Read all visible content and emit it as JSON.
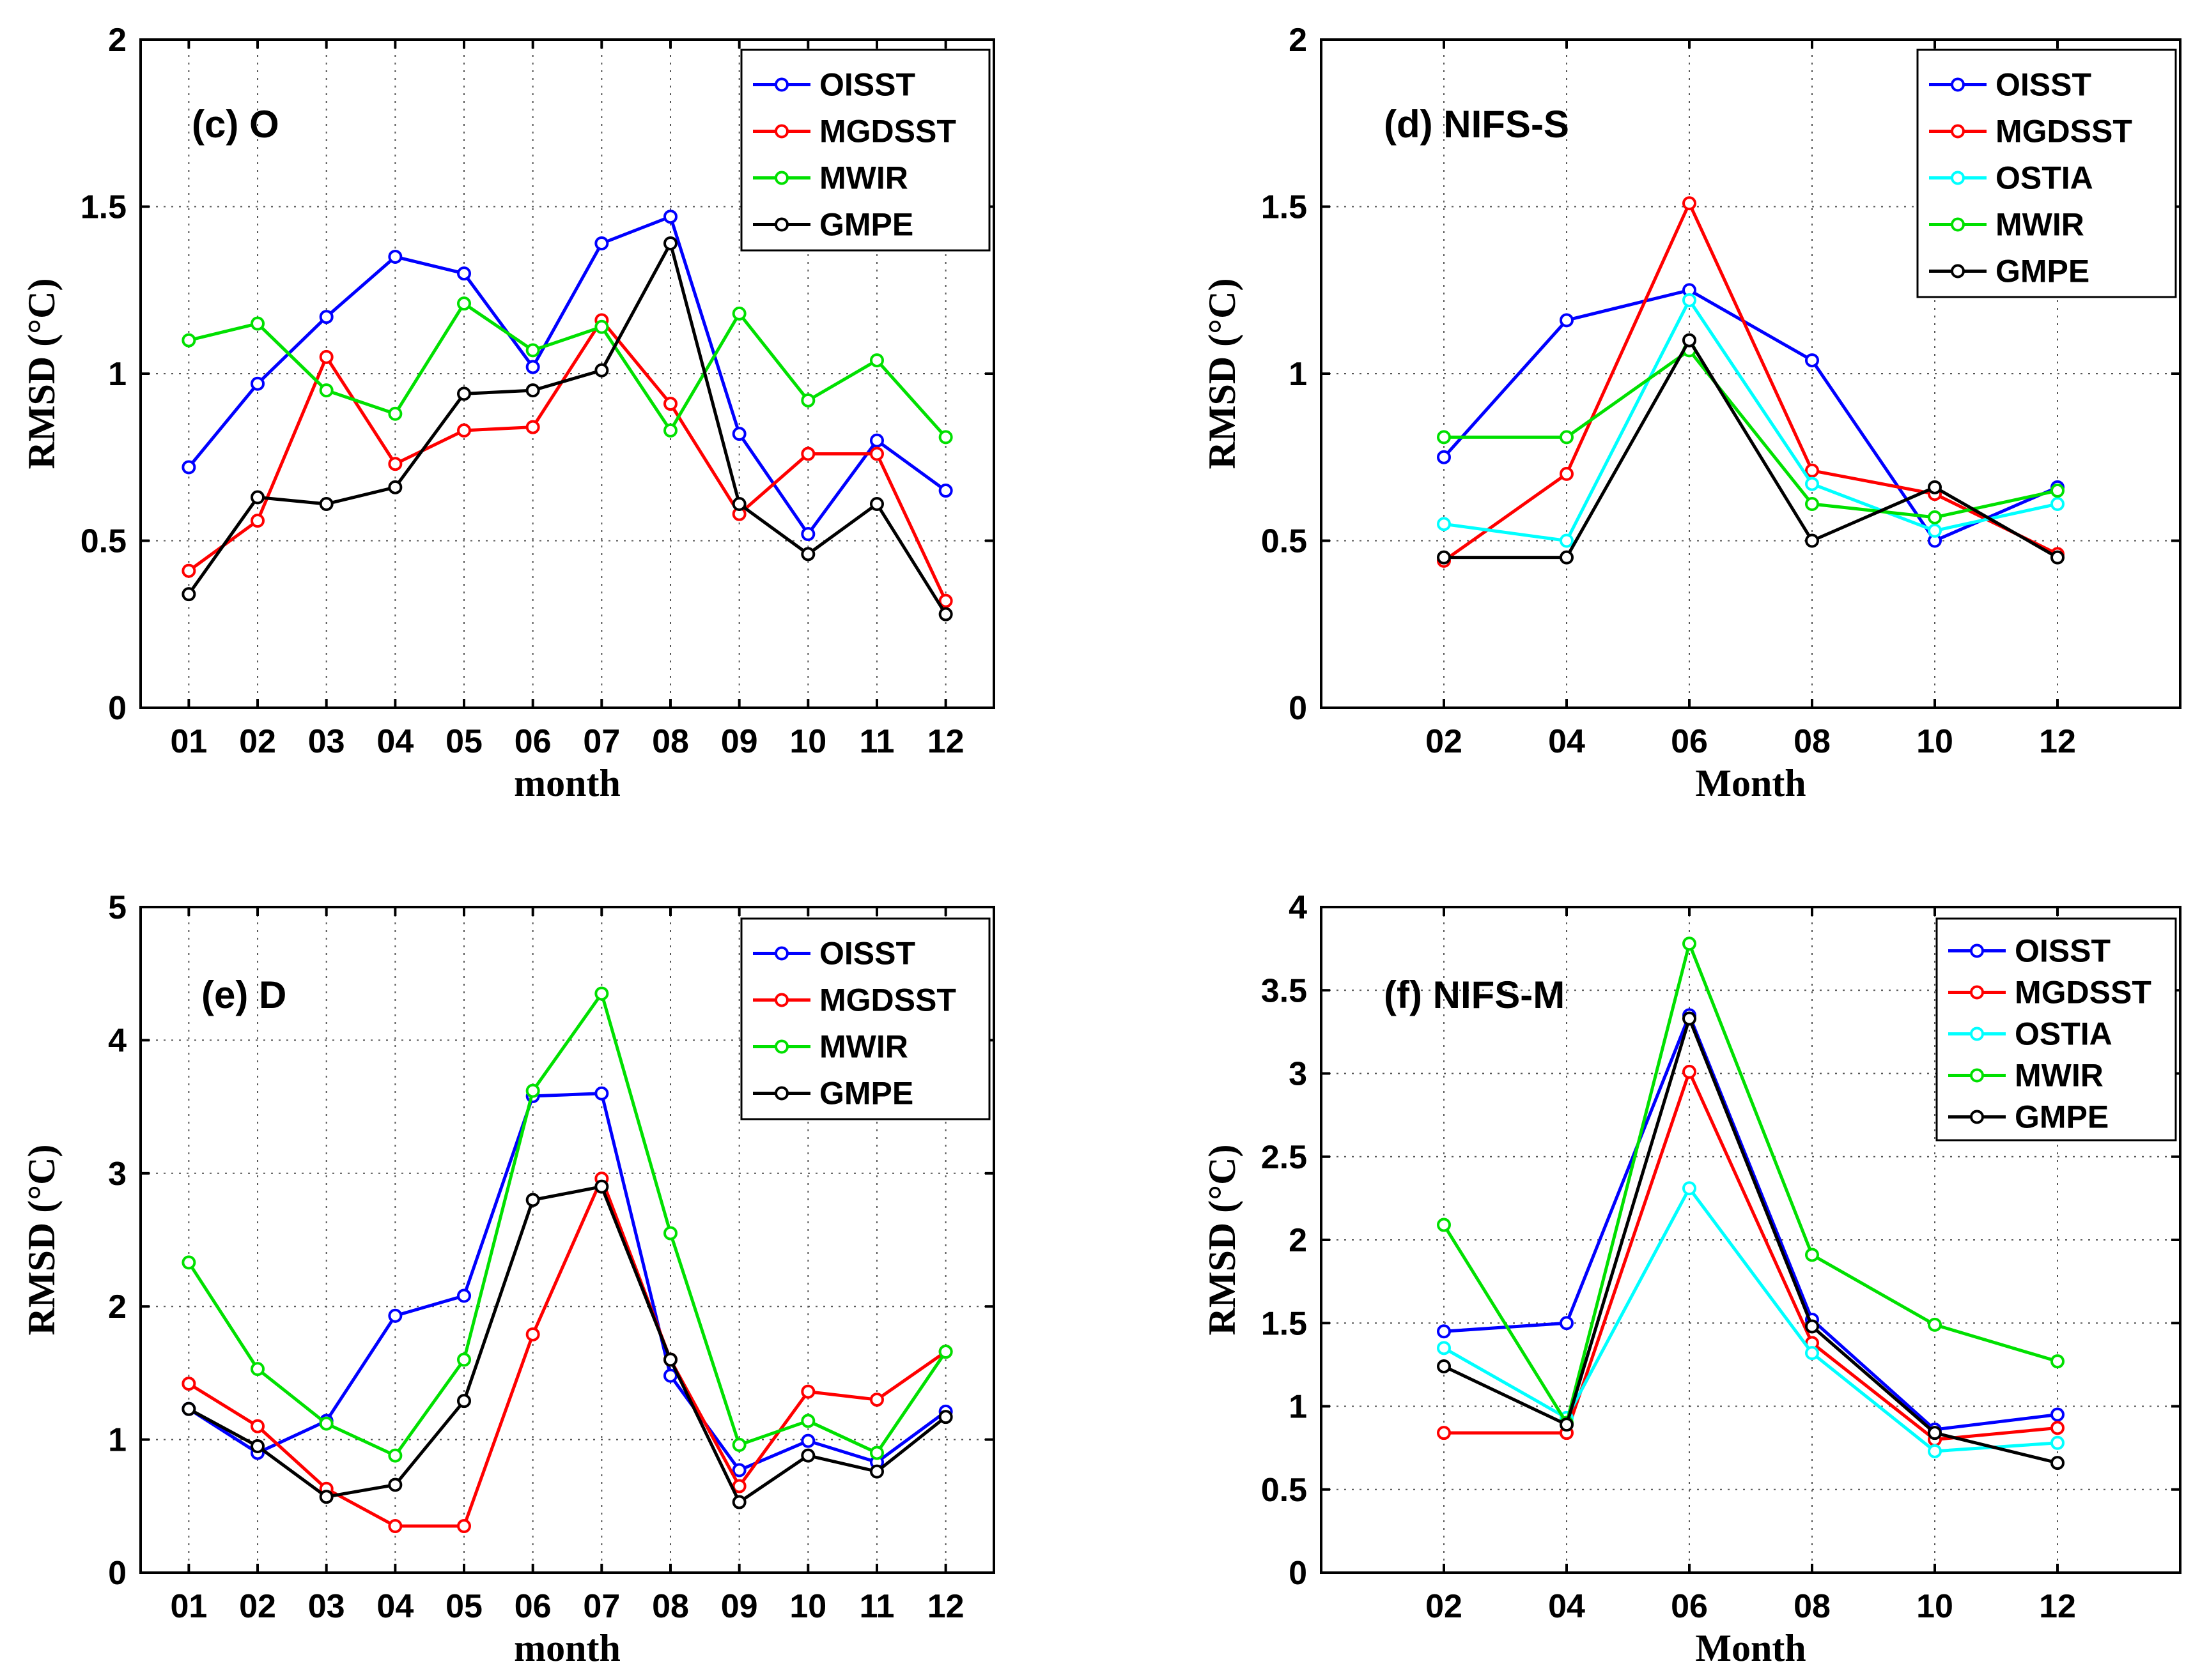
{
  "chart_data": [
    {
      "panel_label": "(c) O",
      "type": "line",
      "categories": [
        "01",
        "02",
        "03",
        "04",
        "05",
        "06",
        "07",
        "08",
        "09",
        "10",
        "11",
        "12"
      ],
      "xlabel": "month",
      "ylabel": "RMSD (°C)",
      "ylim": [
        0,
        2
      ],
      "yticks": [
        0,
        0.5,
        1,
        1.5,
        2
      ],
      "ytick_labels": [
        "0",
        "0.5",
        "1",
        "1.5",
        "2"
      ],
      "grid": true,
      "legend_position": "top-right",
      "series": [
        {
          "name": "OISST",
          "color": "#0000ff",
          "values": [
            0.72,
            0.97,
            1.17,
            1.35,
            1.3,
            1.02,
            1.39,
            1.47,
            0.82,
            0.52,
            0.8,
            0.65
          ]
        },
        {
          "name": "MGDSST",
          "color": "#ff0000",
          "values": [
            0.41,
            0.56,
            1.05,
            0.73,
            0.83,
            0.84,
            1.16,
            0.91,
            0.58,
            0.76,
            0.76,
            0.32
          ]
        },
        {
          "name": "MWIR",
          "color": "#00e000",
          "values": [
            1.1,
            1.15,
            0.95,
            0.88,
            1.21,
            1.07,
            1.14,
            0.83,
            1.18,
            0.92,
            1.04,
            0.81
          ]
        },
        {
          "name": "GMPE",
          "color": "#000000",
          "values": [
            0.34,
            0.63,
            0.61,
            0.66,
            0.94,
            0.95,
            1.01,
            1.39,
            0.61,
            0.46,
            0.61,
            0.28
          ]
        }
      ]
    },
    {
      "panel_label": "(d) NIFS-S",
      "type": "line",
      "categories": [
        "02",
        "04",
        "06",
        "08",
        "10",
        "12"
      ],
      "xlabel": "Month",
      "ylabel": "RMSD (°C)",
      "ylim": [
        0,
        2
      ],
      "yticks": [
        0,
        0.5,
        1,
        1.5,
        2
      ],
      "ytick_labels": [
        "0",
        "0.5",
        "1",
        "1.5",
        "2"
      ],
      "grid": true,
      "legend_position": "top-right",
      "series": [
        {
          "name": "OISST",
          "color": "#0000ff",
          "values": [
            0.75,
            1.16,
            1.25,
            1.04,
            0.5,
            0.66
          ]
        },
        {
          "name": "MGDSST",
          "color": "#ff0000",
          "values": [
            0.44,
            0.7,
            1.51,
            0.71,
            0.64,
            0.46
          ]
        },
        {
          "name": "OSTIA",
          "color": "#00ffff",
          "values": [
            0.55,
            0.5,
            1.22,
            0.67,
            0.53,
            0.61
          ]
        },
        {
          "name": "MWIR",
          "color": "#00e000",
          "values": [
            0.81,
            0.81,
            1.07,
            0.61,
            0.57,
            0.65
          ]
        },
        {
          "name": "GMPE",
          "color": "#000000",
          "values": [
            0.45,
            0.45,
            1.1,
            0.5,
            0.66,
            0.45
          ]
        }
      ]
    },
    {
      "panel_label": "(e) D",
      "type": "line",
      "categories": [
        "01",
        "02",
        "03",
        "04",
        "05",
        "06",
        "07",
        "08",
        "09",
        "10",
        "11",
        "12"
      ],
      "xlabel": "month",
      "ylabel": "RMSD (°C)",
      "ylim": [
        0,
        5
      ],
      "yticks": [
        0,
        1,
        2,
        3,
        4,
        5
      ],
      "ytick_labels": [
        "0",
        "1",
        "2",
        "3",
        "4",
        "5"
      ],
      "grid": true,
      "legend_position": "top-right",
      "series": [
        {
          "name": "OISST",
          "color": "#0000ff",
          "values": [
            1.23,
            0.9,
            1.14,
            1.93,
            2.08,
            3.58,
            3.6,
            1.48,
            0.77,
            0.99,
            0.83,
            1.21
          ]
        },
        {
          "name": "MGDSST",
          "color": "#ff0000",
          "values": [
            1.42,
            1.1,
            0.63,
            0.35,
            0.35,
            1.79,
            2.96,
            1.6,
            0.65,
            1.36,
            1.3,
            1.66
          ]
        },
        {
          "name": "MWIR",
          "color": "#00e000",
          "values": [
            2.33,
            1.53,
            1.12,
            0.88,
            1.6,
            3.62,
            4.35,
            2.55,
            0.96,
            1.14,
            0.9,
            1.66
          ]
        },
        {
          "name": "GMPE",
          "color": "#000000",
          "values": [
            1.23,
            0.95,
            0.57,
            0.66,
            1.29,
            2.8,
            2.9,
            1.6,
            0.53,
            0.88,
            0.76,
            1.17
          ]
        }
      ]
    },
    {
      "panel_label": "(f) NIFS-M",
      "type": "line",
      "categories": [
        "02",
        "04",
        "06",
        "08",
        "10",
        "12"
      ],
      "xlabel": "Month",
      "ylabel": "RMSD (°C)",
      "ylim": [
        0,
        4
      ],
      "yticks": [
        0,
        0.5,
        1,
        1.5,
        2,
        2.5,
        3,
        3.5,
        4
      ],
      "ytick_labels": [
        "0",
        "0.5",
        "1",
        "1.5",
        "2",
        "2.5",
        "3",
        "3.5",
        "4"
      ],
      "grid": true,
      "legend_position": "top-right",
      "series": [
        {
          "name": "OISST",
          "color": "#0000ff",
          "values": [
            1.45,
            1.5,
            3.35,
            1.52,
            0.86,
            0.95
          ]
        },
        {
          "name": "MGDSST",
          "color": "#ff0000",
          "values": [
            0.84,
            0.84,
            3.01,
            1.38,
            0.8,
            0.87
          ]
        },
        {
          "name": "OSTIA",
          "color": "#00ffff",
          "values": [
            1.35,
            0.93,
            2.31,
            1.32,
            0.73,
            0.78
          ]
        },
        {
          "name": "MWIR",
          "color": "#00e000",
          "values": [
            2.09,
            0.9,
            3.78,
            1.91,
            1.49,
            1.27
          ]
        },
        {
          "name": "GMPE",
          "color": "#000000",
          "values": [
            1.24,
            0.89,
            3.33,
            1.48,
            0.84,
            0.66
          ]
        }
      ]
    }
  ]
}
